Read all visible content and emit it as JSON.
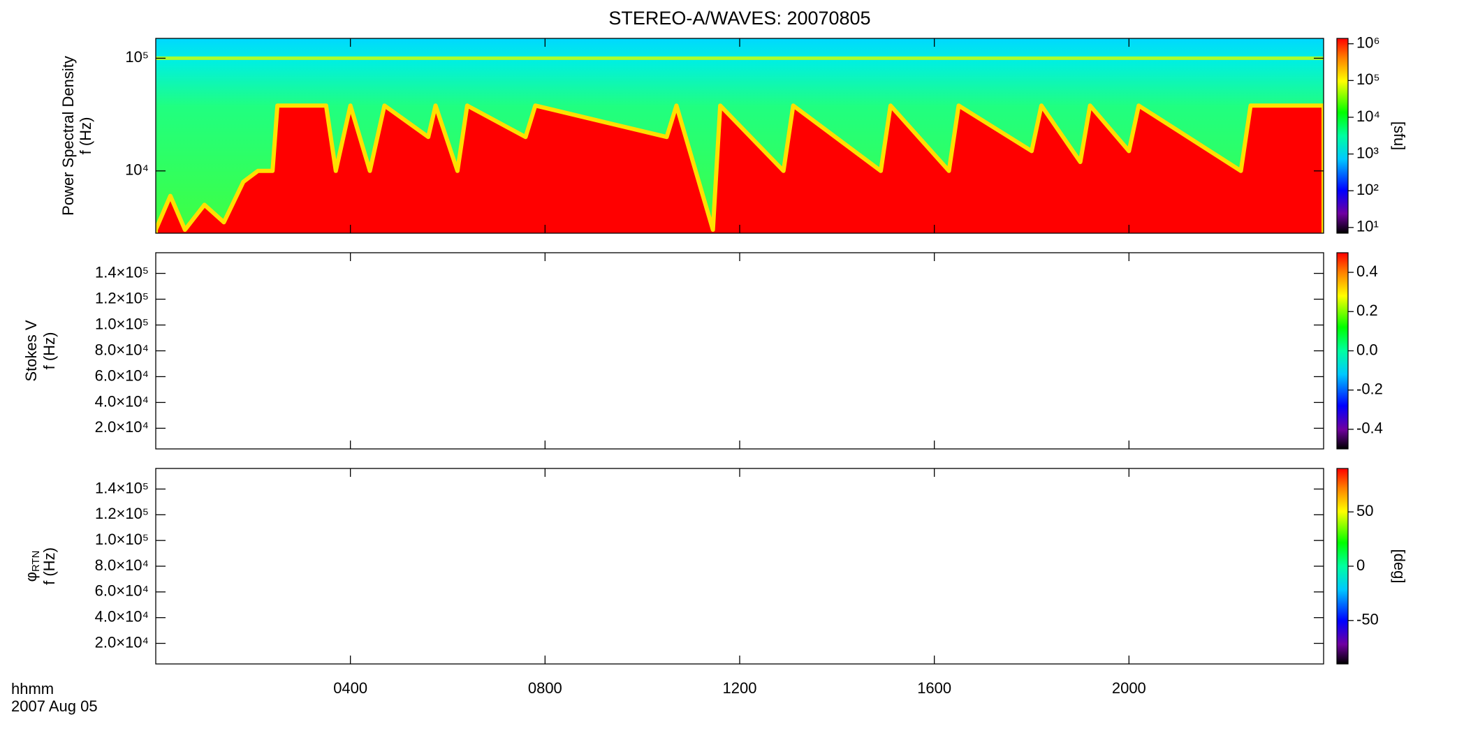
{
  "title": "STEREO-A/WAVES: 20070805",
  "time_label": "hhmm",
  "date_label": "2007 Aug 05",
  "chart_data": [
    {
      "type": "spectrogram",
      "ylabel": [
        "Power Spectral Density",
        "f (Hz)"
      ],
      "ylog": true,
      "ylim": [
        2800,
        150000
      ],
      "yticks": [
        {
          "value": 10000,
          "label": "10⁴"
        },
        {
          "value": 100000,
          "label": "10⁵"
        }
      ],
      "x": [
        0,
        0.3,
        0.6,
        1.0,
        1.4,
        1.8,
        2.1,
        2.4,
        2.5,
        3.5,
        3.7,
        4.0,
        4.4,
        4.7,
        5.6,
        5.75,
        6.2,
        6.4,
        7.6,
        7.8,
        10.5,
        10.7,
        11.45,
        11.6,
        12.9,
        13.1,
        14.9,
        15.1,
        16.3,
        16.5,
        18.0,
        18.2,
        19.0,
        19.2,
        20.0,
        20.2,
        22.3,
        22.5,
        24
      ],
      "values": [
        3000,
        6000,
        3000,
        5000,
        3500,
        8000,
        10000,
        10000,
        38000,
        38000,
        10000,
        38000,
        10000,
        38000,
        20000,
        38000,
        10000,
        38000,
        20000,
        38000,
        20000,
        38000,
        3000,
        38000,
        10000,
        38000,
        10000,
        38000,
        10000,
        38000,
        15000,
        38000,
        12000,
        38000,
        15000,
        38000,
        10000,
        38000,
        38000
      ],
      "color": "#ff0000",
      "edge_color": "#ffe000",
      "lines": [
        100000
      ],
      "colorbar": {
        "label": "[sfu]",
        "log": true,
        "clim": [
          7,
          1400000
        ],
        "ticks": [
          {
            "value": 10,
            "label": "10¹"
          },
          {
            "value": 100,
            "label": "10²"
          },
          {
            "value": 1000,
            "label": "10³"
          },
          {
            "value": 10000,
            "label": "10⁴"
          },
          {
            "value": 100000,
            "label": "10⁵"
          },
          {
            "value": 1000000,
            "label": "10⁶"
          }
        ]
      }
    },
    {
      "type": "spectrogram",
      "ylabel": [
        "Stokes V",
        "f (Hz)"
      ],
      "ylog": false,
      "ylim": [
        4000,
        156000
      ],
      "yticks": [
        {
          "value": 20000,
          "label": "2.0×10⁴"
        },
        {
          "value": 40000,
          "label": "4.0×10⁴"
        },
        {
          "value": 60000,
          "label": "6.0×10⁴"
        },
        {
          "value": 80000,
          "label": "8.0×10⁴"
        },
        {
          "value": 100000,
          "label": "1.0×10⁵"
        },
        {
          "value": 120000,
          "label": "1.2×10⁵"
        },
        {
          "value": 140000,
          "label": "1.4×10⁵"
        }
      ],
      "colorbar": {
        "log": false,
        "clim": [
          -0.5,
          0.5
        ],
        "ticks": [
          -0.4,
          -0.2,
          {
            "value": 0,
            "label": "0.0"
          },
          0.2,
          0.4
        ]
      }
    },
    {
      "type": "spectrogram",
      "ylabel": [
        "φ",
        "f (Hz)"
      ],
      "ylabel_sub": "RTN",
      "ylog": false,
      "ylim": [
        4000,
        156000
      ],
      "yticks": [
        {
          "value": 20000,
          "label": "2.0×10⁴"
        },
        {
          "value": 40000,
          "label": "4.0×10⁴"
        },
        {
          "value": 60000,
          "label": "6.0×10⁴"
        },
        {
          "value": 80000,
          "label": "8.0×10⁴"
        },
        {
          "value": 100000,
          "label": "1.0×10⁵"
        },
        {
          "value": 120000,
          "label": "1.2×10⁵"
        },
        {
          "value": 140000,
          "label": "1.4×10⁵"
        }
      ],
      "xlim": [
        0,
        24
      ],
      "xticks": [
        {
          "value": 4,
          "label": "0400"
        },
        {
          "value": 8,
          "label": "0800"
        },
        {
          "value": 12,
          "label": "1200"
        },
        {
          "value": 16,
          "label": "1600"
        },
        {
          "value": 20,
          "label": "2000"
        }
      ],
      "colorbar": {
        "label": "[deg]",
        "log": false,
        "clim": [
          -90,
          90
        ],
        "ticks": [
          -50,
          0,
          50
        ]
      }
    }
  ]
}
